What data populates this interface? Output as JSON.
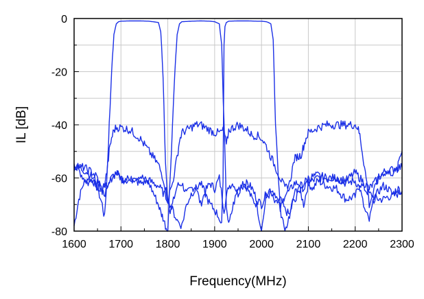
{
  "chart_data": {
    "type": "line",
    "title": "",
    "xlabel": "Frequency(MHz)",
    "ylabel": "IL [dB]",
    "xlim": [
      1600,
      2300
    ],
    "ylim": [
      -80,
      0
    ],
    "x_ticks": [
      1600,
      1700,
      1800,
      1900,
      2000,
      2100,
      2200,
      2300
    ],
    "x_tick_labels": [
      "1600",
      "1700",
      "1800",
      "1900",
      "2000",
      "2100",
      "2200",
      "2300"
    ],
    "y_ticks": [
      0,
      -20,
      -40,
      -60,
      -80
    ],
    "y_tick_labels": [
      "0",
      "-20",
      "-40",
      "-60",
      "-80"
    ],
    "grid": true,
    "legend": "none",
    "line_color": "#1a2fe6",
    "series": [
      {
        "x": [
          1600,
          1610,
          1620,
          1630,
          1640,
          1650,
          1660,
          1665,
          1670,
          1675,
          1680,
          1685,
          1690,
          1695,
          1700,
          1720,
          1740,
          1760,
          1780,
          1785,
          1790,
          1795,
          1800,
          1805,
          1810,
          1820,
          1830,
          1840,
          1850,
          1860,
          1870,
          1880,
          1890,
          1900,
          1910,
          1920,
          1930,
          1940,
          1950,
          1960,
          1970,
          1980,
          1990,
          2000,
          2010,
          2020,
          2030,
          2040,
          2050,
          2060,
          2070,
          2080,
          2090,
          2100,
          2110,
          2120,
          2140,
          2160,
          2180,
          2200,
          2210,
          2220,
          2230,
          2240,
          2250,
          2260,
          2270,
          2280,
          2290,
          2300
        ],
        "y": [
          -78,
          -68,
          -62,
          -60,
          -61,
          -64,
          -70,
          -75,
          -60,
          -40,
          -20,
          -6,
          -2,
          -1.2,
          -1,
          -0.9,
          -0.9,
          -1,
          -1.5,
          -5,
          -22,
          -55,
          -68,
          -72,
          -70,
          -63,
          -62,
          -66,
          -64,
          -63,
          -70,
          -65,
          -62,
          -64,
          -60,
          -72,
          -63,
          -62,
          -66,
          -61,
          -64,
          -68,
          -70,
          -80,
          -67,
          -66,
          -70,
          -68,
          -72,
          -74,
          -66,
          -63,
          -70,
          -62,
          -64,
          -61,
          -63,
          -64,
          -68,
          -67,
          -62,
          -64,
          -66,
          -67,
          -68,
          -68,
          -67,
          -67,
          -66,
          -65
        ]
      },
      {
        "x": [
          1600,
          1610,
          1620,
          1630,
          1640,
          1650,
          1660,
          1670,
          1680,
          1690,
          1700,
          1720,
          1740,
          1760,
          1780,
          1785,
          1790,
          1795,
          1800,
          1810,
          1815,
          1820,
          1825,
          1830,
          1850,
          1870,
          1890,
          1900,
          1910,
          1915,
          1920,
          1925,
          1930,
          1940,
          1950,
          1960,
          1970,
          1980,
          1990,
          2000,
          2010,
          2020,
          2030,
          2040,
          2050,
          2060,
          2070,
          2080,
          2090,
          2100,
          2120,
          2140,
          2160,
          2180,
          2200,
          2210,
          2220,
          2230,
          2240,
          2250,
          2260,
          2270,
          2280,
          2290,
          2300
        ],
        "y": [
          -56,
          -57,
          -60,
          -62,
          -60,
          -63,
          -66,
          -65,
          -60,
          -58,
          -60,
          -61,
          -59,
          -62,
          -70,
          -73,
          -75,
          -78,
          -80,
          -40,
          -20,
          -6,
          -2,
          -1.2,
          -1,
          -0.9,
          -1,
          -1.2,
          -2,
          -10,
          -40,
          -70,
          -78,
          -70,
          -64,
          -63,
          -62,
          -64,
          -68,
          -70,
          -66,
          -64,
          -66,
          -72,
          -66,
          -65,
          -62,
          -62,
          -64,
          -62,
          -60,
          -60,
          -60,
          -62,
          -61,
          -64,
          -72,
          -76,
          -68,
          -65,
          -63,
          -64,
          -66,
          -64,
          -65
        ]
      },
      {
        "x": [
          1600,
          1610,
          1620,
          1630,
          1640,
          1650,
          1660,
          1670,
          1680,
          1690,
          1700,
          1720,
          1740,
          1760,
          1780,
          1800,
          1810,
          1820,
          1830,
          1840,
          1850,
          1860,
          1870,
          1880,
          1890,
          1900,
          1910,
          1915,
          1918,
          1920,
          1922,
          1925,
          1930,
          1950,
          1970,
          1990,
          2000,
          2010,
          2015,
          2020,
          2025,
          2030,
          2040,
          2050,
          2060,
          2070,
          2080,
          2090,
          2100,
          2120,
          2140,
          2160,
          2180,
          2200,
          2220,
          2230,
          2240,
          2250,
          2260,
          2270,
          2280,
          2290,
          2300
        ],
        "y": [
          -55,
          -56,
          -57,
          -58,
          -60,
          -62,
          -64,
          -63,
          -60,
          -58,
          -61,
          -60,
          -62,
          -61,
          -63,
          -68,
          -72,
          -76,
          -78,
          -70,
          -66,
          -64,
          -62,
          -66,
          -70,
          -72,
          -75,
          -78,
          -60,
          -10,
          -3,
          -1.5,
          -1,
          -0.9,
          -0.9,
          -1,
          -1,
          -1.2,
          -1.5,
          -2,
          -8,
          -40,
          -72,
          -80,
          -74,
          -68,
          -66,
          -62,
          -60,
          -59,
          -60,
          -60,
          -61,
          -58,
          -62,
          -64,
          -62,
          -60,
          -58,
          -57,
          -57,
          -56,
          -56
        ]
      },
      {
        "x": [
          1600,
          1610,
          1620,
          1630,
          1640,
          1650,
          1660,
          1665,
          1670,
          1675,
          1680,
          1685,
          1690,
          1700,
          1720,
          1740,
          1760,
          1780,
          1790,
          1800,
          1810,
          1820,
          1825,
          1830,
          1840,
          1850,
          1860,
          1870,
          1880,
          1890,
          1900,
          1910,
          1920,
          1925,
          1930,
          1940,
          1950,
          1960,
          1970,
          1980,
          1990,
          2000,
          2010,
          2020,
          2030,
          2040,
          2050,
          2060,
          2070,
          2075,
          2080,
          2085,
          2090,
          2095,
          2100,
          2110,
          2120,
          2140,
          2160,
          2180,
          2200,
          2205,
          2210,
          2215,
          2220,
          2225,
          2230,
          2240,
          2250,
          2260,
          2270,
          2280,
          2290,
          2295,
          2300
        ],
        "y": [
          -55,
          -56,
          -56,
          -57,
          -58,
          -60,
          -65,
          -62,
          -58,
          -50,
          -45,
          -42,
          -41,
          -41,
          -42,
          -45,
          -50,
          -55,
          -60,
          -68,
          -62,
          -52,
          -46,
          -43,
          -42,
          -41,
          -40,
          -40,
          -41,
          -42,
          -43,
          -43,
          -42,
          -48,
          -42,
          -41,
          -40,
          -41,
          -42,
          -44,
          -44,
          -45,
          -48,
          -52,
          -56,
          -60,
          -64,
          -62,
          -53,
          -52,
          -52,
          -51,
          -48,
          -45,
          -43,
          -42,
          -41,
          -40,
          -40,
          -40,
          -40,
          -41,
          -44,
          -50,
          -56,
          -62,
          -70,
          -65,
          -60,
          -58,
          -58,
          -58,
          -57,
          -52,
          -50
        ]
      }
    ]
  }
}
